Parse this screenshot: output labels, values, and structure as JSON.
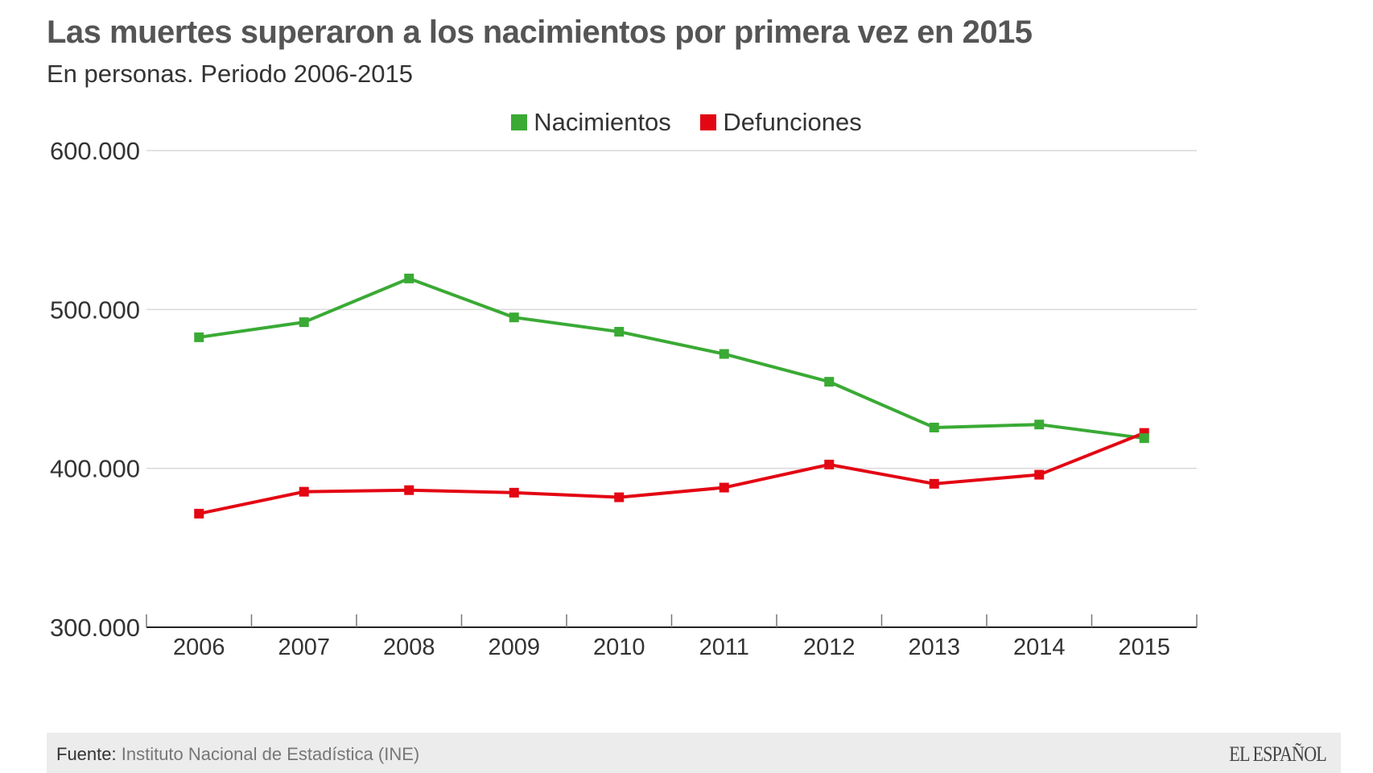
{
  "header": {
    "title": "Las muertes superaron a los nacimientos por primera vez en 2015",
    "subtitle": "En personas. Periodo 2006-2015"
  },
  "footer": {
    "source_label": "Fuente:",
    "source_text": "Instituto Nacional de Estadística (INE)",
    "brand": "EL ESPAÑOL"
  },
  "chart_data": {
    "type": "line",
    "title": "Las muertes superaron a los nacimientos por primera vez en 2015",
    "subtitle": "En personas. Periodo 2006-2015",
    "xlabel": "",
    "ylabel": "",
    "categories": [
      "2006",
      "2007",
      "2008",
      "2009",
      "2010",
      "2011",
      "2012",
      "2013",
      "2014",
      "2015"
    ],
    "ylim": [
      300000,
      600000
    ],
    "yticks": [
      300000,
      400000,
      500000,
      600000
    ],
    "ytick_labels": [
      "300.000",
      "400.000",
      "500.000",
      "600.000"
    ],
    "grid": true,
    "legend_position": "top-center",
    "series": [
      {
        "name": "Nacimientos",
        "color": "#3aaa35",
        "values": [
          482500,
          492000,
          519500,
          495000,
          486000,
          472000,
          454500,
          425700,
          427600,
          419000
        ]
      },
      {
        "name": "Defunciones",
        "color": "#e30613",
        "values": [
          371500,
          385300,
          386300,
          384700,
          381800,
          387900,
          402400,
          390300,
          396000,
          422300
        ]
      }
    ]
  }
}
